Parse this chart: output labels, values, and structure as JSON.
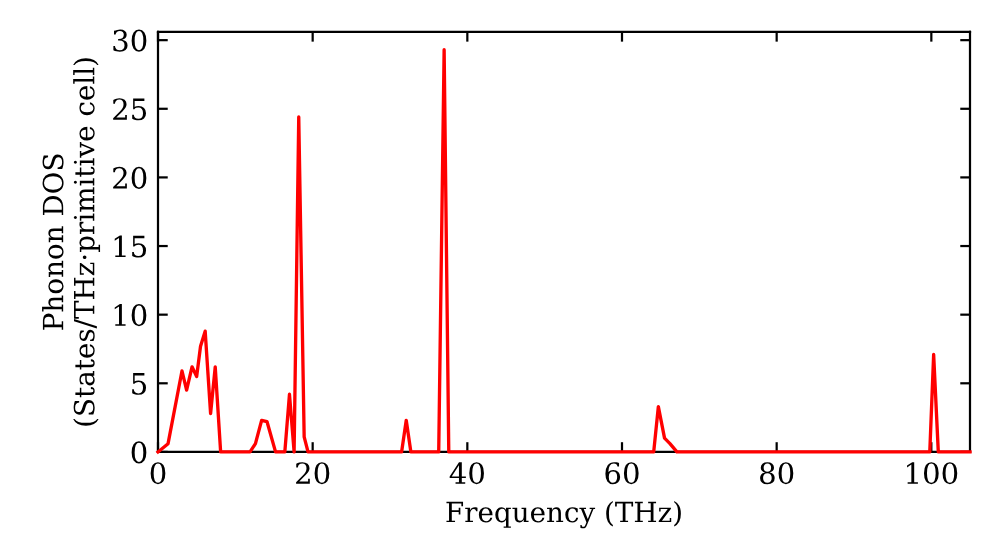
{
  "chart_data": {
    "type": "line",
    "xlabel": "Frequency (THz)",
    "ylabel": "Phonon DOS\n(States/THz·primitive cell)",
    "x": [
      0,
      1.3,
      3.1,
      3.7,
      4.4,
      5.0,
      5.5,
      6.1,
      6.8,
      7.4,
      8.1,
      11.9,
      12.6,
      13.4,
      14.1,
      15.2,
      16.4,
      17.0,
      17.6,
      18.2,
      18.9,
      19.4,
      31.5,
      32.1,
      32.7,
      36.3,
      37.0,
      37.6,
      64.1,
      64.7,
      65.5,
      66.2,
      67.1,
      99.8,
      100.3,
      100.9,
      105
    ],
    "series": [
      {
        "color": "#ff0000",
        "values": [
          0,
          0.6,
          5.9,
          4.5,
          6.2,
          5.5,
          7.7,
          8.8,
          2.8,
          6.2,
          0,
          0,
          0.6,
          2.3,
          2.2,
          0,
          0,
          4.2,
          0,
          24.4,
          1.1,
          0,
          0,
          2.3,
          0,
          0,
          29.3,
          0,
          0,
          3.3,
          1.0,
          0.6,
          0,
          0,
          7.1,
          0,
          0
        ]
      }
    ],
    "xlim": [
      0,
      105
    ],
    "ylim": [
      0,
      30.6
    ],
    "xticks": [
      0,
      20,
      40,
      60,
      80,
      100
    ],
    "yticks": [
      0,
      5,
      10,
      15,
      20,
      25,
      30
    ],
    "grid": false,
    "legend": false,
    "marker": "none",
    "line_style": "solid"
  }
}
